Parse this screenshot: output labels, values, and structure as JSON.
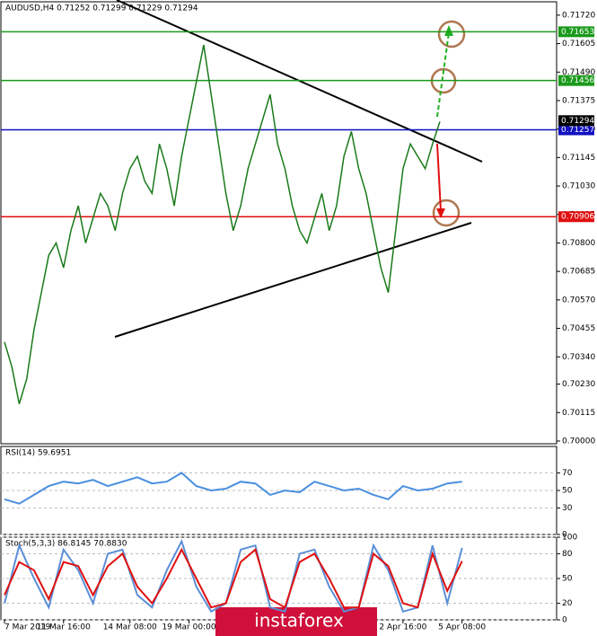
{
  "chart_data": [
    {
      "type": "line",
      "title": "AUDUSD,H4 0.71252 0.71299 0.71229 0.71294",
      "categories": [
        "7 Mar 2019",
        null,
        null,
        null,
        null,
        null,
        null,
        null,
        "11 Mar 16:00",
        null,
        null,
        null,
        null,
        null,
        null,
        null,
        null,
        "14 Mar 08:00",
        null,
        null,
        null,
        null,
        null,
        null,
        null,
        "19 Mar 00:00",
        null,
        null,
        null,
        null,
        null,
        null,
        null,
        null,
        null,
        null,
        null,
        null,
        null,
        null,
        null,
        null,
        null,
        null,
        null,
        null,
        null,
        null,
        null,
        null,
        null,
        null,
        null,
        null,
        "2 Apr 16:00",
        null,
        null,
        null,
        null,
        null,
        null,
        null,
        "5 Apr 08:00",
        null
      ],
      "series": [
        {
          "color": "#1a7a1a",
          "values": [
            0.704,
            0.703,
            0.7015,
            0.7025,
            0.7045,
            0.706,
            0.7075,
            0.708,
            0.707,
            0.7085,
            0.7095,
            0.708,
            0.709,
            0.71,
            0.7095,
            0.7085,
            0.71,
            0.711,
            0.7115,
            0.7105,
            0.71,
            0.712,
            0.711,
            0.7095,
            0.7115,
            0.713,
            0.7145,
            0.716,
            0.714,
            0.712,
            0.71,
            0.7085,
            0.7095,
            0.711,
            0.712,
            0.713,
            0.714,
            0.712,
            0.711,
            0.7095,
            0.7085,
            0.708,
            0.709,
            0.71,
            0.7085,
            0.7095,
            0.7115,
            0.7125,
            0.711,
            0.71,
            0.7085,
            0.707,
            0.706,
            0.7085,
            0.711,
            0.712,
            0.7115,
            0.711,
            0.712,
            0.7129,
            null,
            null,
            null,
            null
          ]
        }
      ],
      "levels": [
        {
          "value": 0.71653,
          "color": "#1a9a1a"
        },
        {
          "value": 0.71456,
          "color": "#1a9a1a"
        },
        {
          "value": 0.71257,
          "color": "#1010c0"
        },
        {
          "value": 0.70906,
          "color": "#e01010"
        }
      ],
      "current": {
        "value": 0.71294,
        "color": "#000000"
      },
      "ylim": [
        0.69989,
        0.71774
      ],
      "yticks": [
        {
          "value": 0.7172,
          "label": "0.71720"
        },
        {
          "value": 0.71605,
          "label": "0.71605"
        },
        {
          "value": 0.7149,
          "label": "0.71490"
        },
        {
          "value": 0.71375,
          "label": "0.71375"
        },
        {
          "value": 0.7126,
          "label": "0.71260"
        },
        {
          "value": 0.71145,
          "label": "0.71145"
        },
        {
          "value": 0.7103,
          "label": "0.71030"
        },
        {
          "value": 0.70915,
          "label": "0.70915"
        },
        {
          "value": 0.708,
          "label": "0.70800"
        },
        {
          "value": 0.70685,
          "label": "0.70685"
        },
        {
          "value": 0.7057,
          "label": "0.70570"
        },
        {
          "value": 0.70455,
          "label": "0.70455"
        },
        {
          "value": 0.7034,
          "label": "0.70340"
        },
        {
          "value": 0.7023,
          "label": "0.70230"
        },
        {
          "value": 0.70115,
          "label": "0.70115"
        },
        {
          "value": 0.7,
          "label": "0.70000"
        }
      ],
      "watermark": "instaforex"
    },
    {
      "type": "line",
      "title": "RSI(14) 59.6951",
      "series": [
        {
          "color": "#4a8fe0",
          "values": [
            40,
            35,
            45,
            55,
            60,
            58,
            62,
            55,
            60,
            65,
            58,
            60,
            70,
            55,
            50,
            52,
            60,
            58,
            45,
            50,
            48,
            60,
            55,
            50,
            52,
            45,
            40,
            55,
            50,
            52,
            58,
            60
          ]
        }
      ],
      "ylim": [
        0,
        100
      ],
      "yticks": [
        70,
        50,
        30,
        0
      ]
    },
    {
      "type": "line",
      "title": "Stoch(5,3,3) 86.8145 70.8830",
      "series": [
        {
          "color": "#5b8fd6",
          "values": [
            20,
            90,
            50,
            15,
            85,
            60,
            20,
            80,
            85,
            30,
            15,
            60,
            95,
            40,
            10,
            20,
            85,
            90,
            15,
            10,
            80,
            85,
            40,
            10,
            15,
            90,
            60,
            10,
            15,
            90,
            20,
            87
          ]
        },
        {
          "color": "#e01010",
          "values": [
            30,
            70,
            60,
            25,
            70,
            65,
            30,
            65,
            80,
            40,
            20,
            50,
            85,
            50,
            15,
            20,
            70,
            85,
            25,
            15,
            70,
            80,
            50,
            15,
            15,
            80,
            65,
            20,
            15,
            80,
            35,
            71
          ]
        }
      ],
      "ylim": [
        0,
        100
      ],
      "yticks": [
        100,
        80,
        50,
        20,
        0
      ]
    }
  ]
}
